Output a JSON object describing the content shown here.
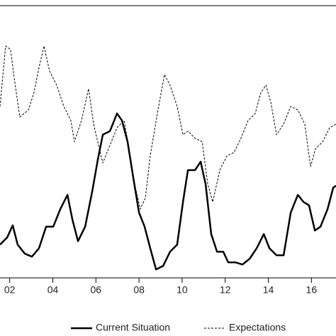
{
  "chart_data": {
    "type": "line",
    "xlim": [
      2001.55,
      2017.14
    ],
    "ylim": [
      0,
      100
    ],
    "xticks": [
      {
        "value": 2002,
        "label": "02"
      },
      {
        "value": 2004,
        "label": "04"
      },
      {
        "value": 2006,
        "label": "06"
      },
      {
        "value": 2008,
        "label": "08"
      },
      {
        "value": 2010,
        "label": "10"
      },
      {
        "value": 2012,
        "label": "12"
      },
      {
        "value": 2014,
        "label": "14"
      },
      {
        "value": 2016,
        "label": "16"
      }
    ],
    "series": [
      {
        "name": "Current Situation",
        "color": "#000000",
        "dash": false,
        "x": [
          2001.55,
          2001.88,
          2002.14,
          2002.37,
          2002.7,
          2003.03,
          2003.36,
          2003.69,
          2004.02,
          2004.35,
          2004.68,
          2004.91,
          2005.17,
          2005.5,
          2005.83,
          2006.09,
          2006.32,
          2006.65,
          2006.98,
          2007.21,
          2007.47,
          2007.73,
          2008.0,
          2008.26,
          2008.52,
          2008.79,
          2009.12,
          2009.44,
          2009.77,
          2010.04,
          2010.27,
          2010.6,
          2010.86,
          2011.09,
          2011.35,
          2011.62,
          2011.91,
          2012.14,
          2012.47,
          2012.8,
          2013.13,
          2013.46,
          2013.79,
          2014.05,
          2014.38,
          2014.71,
          2015.04,
          2015.37,
          2015.63,
          2015.89,
          2016.16,
          2016.42,
          2016.75,
          2017.01,
          2017.14
        ],
        "values": [
          12.2,
          14.8,
          19.3,
          12.2,
          8.9,
          7.8,
          10.9,
          18.8,
          18.8,
          25.3,
          30.5,
          21.4,
          13.5,
          18.8,
          31.8,
          43.5,
          52.6,
          53.9,
          60.4,
          57.8,
          50.0,
          37.0,
          24.0,
          18.8,
          10.9,
          3.1,
          4.4,
          9.6,
          12.2,
          27.9,
          39.6,
          39.6,
          42.7,
          34.4,
          16.1,
          9.6,
          9.6,
          5.7,
          5.7,
          4.9,
          7.0,
          10.9,
          16.1,
          10.9,
          8.3,
          8.3,
          24.0,
          30.5,
          27.9,
          26.6,
          17.4,
          18.8,
          25.3,
          33.1,
          33.9
        ]
      },
      {
        "name": "Expectations",
        "color": "#000000",
        "dash": true,
        "x": [
          2001.55,
          2001.81,
          2002.04,
          2002.21,
          2002.47,
          2002.87,
          2003.13,
          2003.36,
          2003.59,
          2003.85,
          2004.18,
          2004.51,
          2004.84,
          2005.0,
          2005.33,
          2005.66,
          2005.89,
          2006.32,
          2006.65,
          2006.98,
          2007.31,
          2007.54,
          2007.8,
          2008.06,
          2008.29,
          2008.52,
          2008.85,
          2009.18,
          2009.44,
          2009.77,
          2010.04,
          2010.27,
          2010.6,
          2010.93,
          2011.19,
          2011.42,
          2011.75,
          2012.08,
          2012.41,
          2012.73,
          2013.06,
          2013.39,
          2013.66,
          2013.89,
          2014.12,
          2014.38,
          2014.71,
          2015.04,
          2015.37,
          2015.69,
          2015.96,
          2016.19,
          2016.52,
          2016.85,
          2017.14
        ],
        "values": [
          63.0,
          85.2,
          83.9,
          73.4,
          59.1,
          61.7,
          68.2,
          77.3,
          85.2,
          76.0,
          70.8,
          63.0,
          57.8,
          50.0,
          57.8,
          69.5,
          56.5,
          42.2,
          48.7,
          55.2,
          57.8,
          47.4,
          34.4,
          25.3,
          29.2,
          44.8,
          60.4,
          74.7,
          70.8,
          63.0,
          52.6,
          53.9,
          51.3,
          50.0,
          34.4,
          27.9,
          39.6,
          44.8,
          46.1,
          51.3,
          57.8,
          60.4,
          68.2,
          70.8,
          64.3,
          52.6,
          56.5,
          63.0,
          61.7,
          56.5,
          40.9,
          47.4,
          50.0,
          55.2,
          56.5
        ]
      }
    ]
  }
}
